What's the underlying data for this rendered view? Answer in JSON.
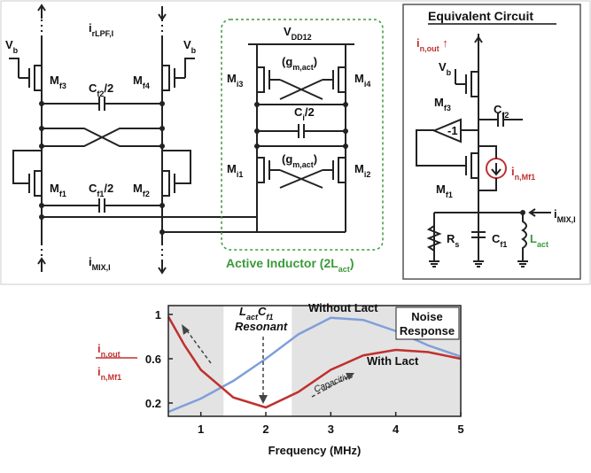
{
  "circuit": {
    "labels": [
      [
        "i",
        "rLPF,I"
      ],
      [
        "V",
        "b"
      ],
      [
        "V",
        "b"
      ],
      [
        "M",
        "f3"
      ],
      [
        "M",
        "f4"
      ],
      [
        "C",
        "f2",
        "/2"
      ],
      [
        "M",
        "f1"
      ],
      [
        "M",
        "f2"
      ],
      [
        "C",
        "f1",
        "/2"
      ],
      [
        "i",
        "MIX,I"
      ]
    ],
    "active_inductor": {
      "title": [
        "Active Inductor (2L",
        "act",
        ")"
      ],
      "labels": [
        [
          "V",
          "DD12"
        ],
        [
          "M",
          "i3"
        ],
        [
          "(g",
          "m,act",
          ")"
        ],
        [
          "M",
          "i4"
        ],
        [
          "C",
          "i",
          "/2"
        ],
        [
          "M",
          "i1"
        ],
        [
          "(g",
          "m,act",
          ")"
        ],
        [
          "M",
          "i2"
        ]
      ]
    },
    "equivalent": {
      "title": [
        "Equivalent Circuit"
      ],
      "labels": [
        [
          "i",
          "n,out",
          " ↑"
        ],
        [
          "V",
          "b"
        ],
        [
          "M",
          "f3"
        ],
        [
          "C",
          "f2"
        ],
        [
          "-1"
        ],
        [
          "i",
          "n,Mf1"
        ],
        [
          "M",
          "f1"
        ],
        [
          "i",
          "MIX,I"
        ],
        [
          "R",
          "s"
        ],
        [
          "C",
          "f1"
        ],
        [
          "L",
          "act"
        ]
      ]
    }
  },
  "chart_data": {
    "type": "line",
    "xlabel": "Frequency (MHz)",
    "ylabel": {
      "numerator": [
        "i",
        "n,out"
      ],
      "denominator": [
        "i",
        "n,Mf1"
      ]
    },
    "x": [
      0.5,
      0.75,
      1,
      1.5,
      2,
      2.5,
      3,
      3.5,
      4,
      4.5,
      5
    ],
    "series": [
      {
        "name": "Without Lact",
        "color": "#7f9fd9",
        "values": [
          0.12,
          0.18,
          0.24,
          0.4,
          0.6,
          0.82,
          0.97,
          0.95,
          0.85,
          0.72,
          0.62
        ]
      },
      {
        "name": "With Lact",
        "color": "#c0302e",
        "values": [
          0.98,
          0.72,
          0.5,
          0.25,
          0.16,
          0.3,
          0.5,
          0.63,
          0.68,
          0.66,
          0.6
        ]
      }
    ],
    "xlim": [
      0.5,
      5
    ],
    "xticks": [
      1,
      2,
      3,
      4,
      5
    ],
    "ylim": [
      0.08,
      1.08
    ],
    "yticks": [
      0.2,
      0.6,
      1
    ],
    "shaded_regions": [
      [
        0.5,
        1.35
      ],
      [
        2.4,
        5
      ]
    ],
    "annotations": {
      "resonance": [
        "L",
        "act",
        "C",
        "f1"
      ],
      "resonant": "Resonant",
      "capacitive": "Capacitive",
      "box": [
        "Noise",
        "Response"
      ]
    }
  }
}
